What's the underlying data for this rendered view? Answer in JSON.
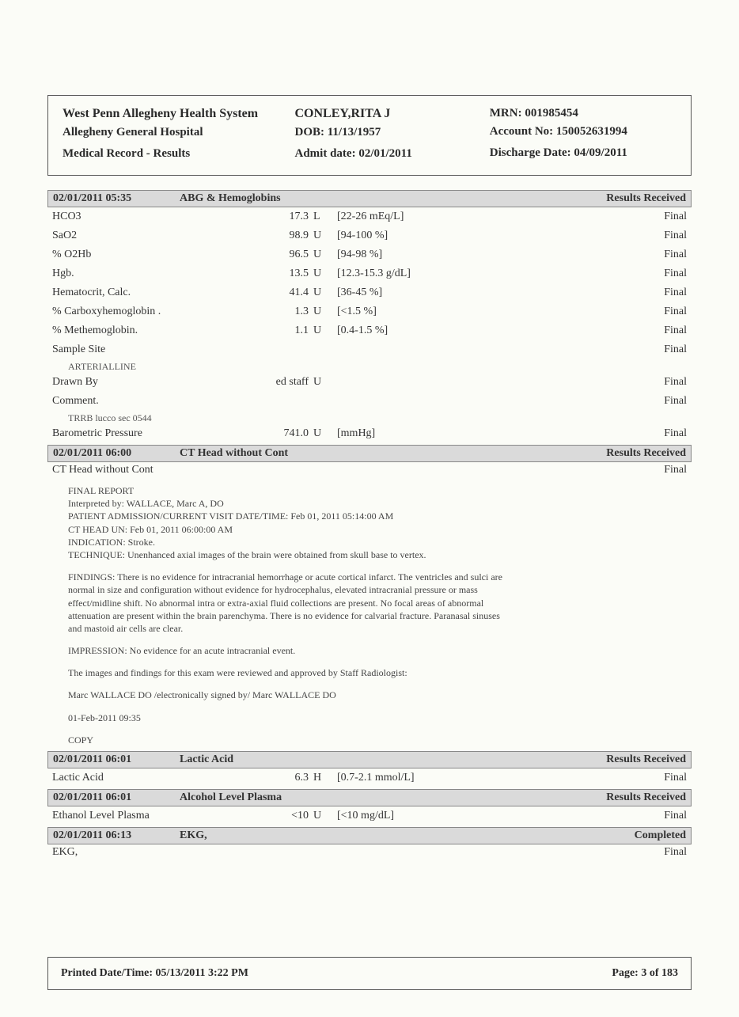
{
  "header": {
    "org1": "West Penn Allegheny Health System",
    "org2": "Allegheny General Hospital",
    "doc_type": "Medical Record - Results",
    "patient_name": "CONLEY,RITA J",
    "dob_label": "DOB:",
    "dob": "11/13/1957",
    "admit_label": "Admit date:",
    "admit": "02/01/2011",
    "mrn_label": "MRN:",
    "mrn": "001985454",
    "acct_label": "Account No:",
    "acct": "150052631994",
    "disch_label": "Discharge Date:",
    "disch": "04/09/2011"
  },
  "sections": [
    {
      "datetime": "02/01/2011 05:35",
      "title": "ABG & Hemoglobins",
      "status": "Results Received",
      "rows": [
        {
          "name": "HCO3",
          "value": "17.3",
          "flag": "L",
          "range": "[22-26 mEq/L]",
          "rstatus": "Final"
        },
        {
          "name": "SaO2",
          "value": "98.9",
          "flag": "U",
          "range": "[94-100 %]",
          "rstatus": "Final"
        },
        {
          "name": "% O2Hb",
          "value": "96.5",
          "flag": "U",
          "range": "[94-98 %]",
          "rstatus": "Final"
        },
        {
          "name": "Hgb.",
          "value": "13.5",
          "flag": "U",
          "range": "[12.3-15.3 g/dL]",
          "rstatus": "Final"
        },
        {
          "name": "Hematocrit, Calc.",
          "value": "41.4",
          "flag": "U",
          "range": "[36-45 %]",
          "rstatus": "Final"
        },
        {
          "name": "% Carboxyhemoglobin .",
          "value": "1.3",
          "flag": "U",
          "range": "[<1.5 %]",
          "rstatus": "Final"
        },
        {
          "name": "% Methemoglobin.",
          "value": "1.1",
          "flag": "U",
          "range": "[0.4-1.5 %]",
          "rstatus": "Final"
        },
        {
          "name": "Sample Site",
          "value": "",
          "flag": "",
          "range": "",
          "rstatus": "Final",
          "note": "ARTERIALLINE"
        },
        {
          "name": "Drawn By",
          "value": "ed staff",
          "flag": "U",
          "range": "",
          "rstatus": "Final"
        },
        {
          "name": "Comment.",
          "value": "",
          "flag": "",
          "range": "",
          "rstatus": "Final",
          "note": "TRRB lucco sec 0544"
        },
        {
          "name": "Barometric Pressure",
          "value": "741.0",
          "flag": "U",
          "range": "[mmHg]",
          "rstatus": "Final"
        }
      ]
    },
    {
      "datetime": "02/01/2011 06:00",
      "title": "CT Head without Cont",
      "status": "Results Received",
      "plain_row": {
        "name": "CT Head without Cont",
        "rstatus": "Final"
      },
      "report": {
        "p1": "FINAL REPORT\nInterpreted by: WALLACE, Marc A, DO\nPATIENT ADMISSION/CURRENT VISIT DATE/TIME: Feb 01, 2011 05:14:00 AM\nCT HEAD UN: Feb 01, 2011 06:00:00 AM\nINDICATION: Stroke.\nTECHNIQUE: Unenhanced axial images of the brain were obtained from skull base to vertex.",
        "p2": "FINDINGS: There is no evidence for intracranial hemorrhage or acute cortical infarct. The ventricles and sulci are normal in size and configuration without evidence for hydrocephalus, elevated intracranial pressure or mass effect/midline shift. No abnormal intra or extra-axial fluid collections are present. No focal areas of abnormal attenuation are present within the brain parenchyma. There is no evidence for calvarial fracture. Paranasal sinuses and mastoid air cells are clear.",
        "p3": "IMPRESSION: No evidence for an acute intracranial event.",
        "p4": "The images and findings for this exam were reviewed and approved by Staff Radiologist:",
        "p5": "Marc WALLACE  DO /electronically signed by/ Marc WALLACE  DO",
        "p6": "01-Feb-2011  09:35",
        "p7": "COPY"
      }
    },
    {
      "datetime": "02/01/2011 06:01",
      "title": "Lactic Acid",
      "status": "Results Received",
      "rows": [
        {
          "name": "Lactic Acid",
          "value": "6.3",
          "flag": "H",
          "range": "[0.7-2.1 mmol/L]",
          "rstatus": "Final"
        }
      ]
    },
    {
      "datetime": "02/01/2011 06:01",
      "title": "Alcohol Level Plasma",
      "status": "Results Received",
      "rows": [
        {
          "name": "Ethanol  Level Plasma",
          "value": "<10",
          "flag": "U",
          "range": "[<10 mg/dL]",
          "rstatus": "Final"
        }
      ]
    },
    {
      "datetime": "02/01/2011 06:13",
      "title": "EKG,",
      "status": "Completed",
      "plain_row": {
        "name": "EKG,",
        "rstatus": "Final"
      }
    }
  ],
  "footer": {
    "printed_label": "Printed Date/Time:",
    "printed": "05/13/2011 3:22 PM",
    "page_label": "Page:",
    "page": "3 of 183"
  }
}
